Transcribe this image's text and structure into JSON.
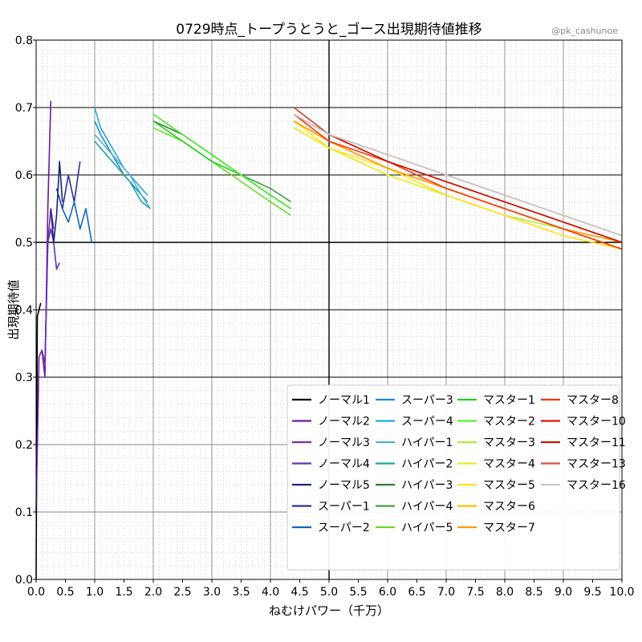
{
  "chart_data": {
    "type": "line",
    "title": "0729時点_トープうとうと_ゴース出現期待値推移",
    "watermark": "@pk_cashunoe",
    "xlabel": "ねむけパワー（千万）",
    "ylabel": "出現期待値",
    "xlim": [
      0,
      10
    ],
    "ylim": [
      0,
      0.8
    ],
    "xticks": [
      "0.0",
      "0.5",
      "1.0",
      "1.5",
      "2.0",
      "2.5",
      "3.0",
      "3.5",
      "4.0",
      "4.5",
      "5.0",
      "5.5",
      "6.0",
      "6.5",
      "7.0",
      "7.5",
      "8.0",
      "8.5",
      "9.0",
      "9.5",
      "10.0"
    ],
    "yticks": [
      "0.0",
      "0.1",
      "0.2",
      "0.3",
      "0.4",
      "0.5",
      "0.6",
      "0.7",
      "0.8"
    ],
    "grid": true,
    "legend_position": "bottom-right",
    "series": [
      {
        "name": "ノーマル1",
        "color": "#000000",
        "x": [
          0.0,
          0.02,
          0.05,
          0.08
        ],
        "y": [
          0.0,
          0.39,
          0.4,
          0.41
        ]
      },
      {
        "name": "ノーマル2",
        "color": "#6a1b9a",
        "x": [
          0.0,
          0.05,
          0.1,
          0.15,
          0.2,
          0.25
        ],
        "y": [
          0.1,
          0.33,
          0.34,
          0.3,
          0.55,
          0.71
        ]
      },
      {
        "name": "ノーマル3",
        "color": "#7b2fa8",
        "x": [
          0.05,
          0.1,
          0.15,
          0.2,
          0.25,
          0.3
        ],
        "y": [
          0.33,
          0.34,
          0.32,
          0.5,
          0.55,
          0.52
        ]
      },
      {
        "name": "ノーマル4",
        "color": "#5e35b1",
        "x": [
          0.15,
          0.2,
          0.25,
          0.3,
          0.35,
          0.4
        ],
        "y": [
          0.32,
          0.5,
          0.52,
          0.5,
          0.46,
          0.47
        ]
      },
      {
        "name": "ノーマル5",
        "color": "#1a237e",
        "x": [
          0.25,
          0.3,
          0.35,
          0.4,
          0.45
        ],
        "y": [
          0.55,
          0.5,
          0.54,
          0.62,
          0.56
        ]
      },
      {
        "name": "スーパー1",
        "color": "#283593",
        "x": [
          0.35,
          0.45,
          0.55,
          0.65,
          0.75
        ],
        "y": [
          0.58,
          0.55,
          0.6,
          0.56,
          0.62
        ]
      },
      {
        "name": "スーパー2",
        "color": "#1565c0",
        "x": [
          0.45,
          0.55,
          0.65,
          0.75,
          0.85,
          0.95
        ],
        "y": [
          0.55,
          0.53,
          0.56,
          0.52,
          0.55,
          0.5
        ]
      },
      {
        "name": "スーパー3",
        "color": "#1e88e5",
        "x": [
          1.0,
          1.1,
          1.3,
          1.5,
          1.7,
          1.9
        ],
        "y": [
          0.68,
          0.66,
          0.63,
          0.6,
          0.58,
          0.56
        ]
      },
      {
        "name": "スーパー4",
        "color": "#26a9d6",
        "x": [
          1.0,
          1.1,
          1.3,
          1.5,
          1.7,
          1.9
        ],
        "y": [
          0.7,
          0.67,
          0.64,
          0.61,
          0.59,
          0.57
        ]
      },
      {
        "name": "ハイパー1",
        "color": "#4db6c8",
        "x": [
          1.0,
          1.2,
          1.4,
          1.6,
          1.8,
          1.95
        ],
        "y": [
          0.66,
          0.64,
          0.62,
          0.6,
          0.57,
          0.55
        ]
      },
      {
        "name": "ハイパー2",
        "color": "#26a69a",
        "x": [
          1.0,
          1.2,
          1.4,
          1.6,
          1.8,
          1.95
        ],
        "y": [
          0.65,
          0.63,
          0.61,
          0.59,
          0.56,
          0.55
        ]
      },
      {
        "name": "ハイパー3",
        "color": "#2e7d32",
        "x": [
          2.0,
          2.5,
          3.0,
          3.5,
          4.0,
          4.35
        ],
        "y": [
          0.68,
          0.66,
          0.63,
          0.6,
          0.57,
          0.55
        ]
      },
      {
        "name": "ハイパー4",
        "color": "#43a047",
        "x": [
          2.0,
          2.5,
          3.0,
          3.5,
          4.0,
          4.35
        ],
        "y": [
          0.69,
          0.66,
          0.63,
          0.6,
          0.58,
          0.56
        ]
      },
      {
        "name": "ハイパー5",
        "color": "#66dd22",
        "x": [
          2.0,
          2.5,
          3.0,
          3.5,
          4.0,
          4.35
        ],
        "y": [
          0.67,
          0.65,
          0.62,
          0.59,
          0.56,
          0.54
        ]
      },
      {
        "name": "マスター1",
        "color": "#22cc22",
        "x": [
          2.0,
          2.5,
          3.0,
          3.5,
          4.0,
          4.35
        ],
        "y": [
          0.68,
          0.65,
          0.62,
          0.6,
          0.57,
          0.55
        ]
      },
      {
        "name": "マスター2",
        "color": "#55ee33",
        "x": [
          2.0,
          2.5,
          3.0,
          3.5,
          4.0,
          4.35
        ],
        "y": [
          0.69,
          0.66,
          0.63,
          0.6,
          0.57,
          0.55
        ]
      },
      {
        "name": "マスター3",
        "color": "#aaee33",
        "x": [
          4.4,
          5.0,
          6.0,
          7.0,
          8.0,
          9.0,
          10.0
        ],
        "y": [
          0.67,
          0.64,
          0.6,
          0.57,
          0.54,
          0.52,
          0.49
        ]
      },
      {
        "name": "マスター4",
        "color": "#eeee22",
        "x": [
          4.4,
          5.0,
          6.0,
          7.0,
          8.0,
          9.0,
          10.0
        ],
        "y": [
          0.67,
          0.64,
          0.6,
          0.57,
          0.54,
          0.51,
          0.49
        ]
      },
      {
        "name": "マスター5",
        "color": "#ffe022",
        "x": [
          4.4,
          5.0,
          6.0,
          7.0,
          8.0,
          9.0,
          10.0
        ],
        "y": [
          0.68,
          0.64,
          0.61,
          0.57,
          0.54,
          0.51,
          0.49
        ]
      },
      {
        "name": "マスター6",
        "color": "#ffc000",
        "x": [
          4.4,
          5.0,
          6.0,
          7.0,
          8.0,
          9.0,
          10.0
        ],
        "y": [
          0.68,
          0.65,
          0.61,
          0.58,
          0.55,
          0.52,
          0.49
        ]
      },
      {
        "name": "マスター7",
        "color": "#ff9900",
        "x": [
          4.4,
          5.0,
          6.0,
          7.0,
          8.0,
          9.0,
          10.0
        ],
        "y": [
          0.68,
          0.65,
          0.61,
          0.58,
          0.55,
          0.52,
          0.5
        ]
      },
      {
        "name": "マスター8",
        "color": "#ff3300",
        "x": [
          4.4,
          5.0,
          6.0,
          7.0,
          8.0,
          9.0,
          10.0
        ],
        "y": [
          0.69,
          0.65,
          0.62,
          0.58,
          0.55,
          0.52,
          0.49
        ]
      },
      {
        "name": "マスター10",
        "color": "#ee1100",
        "x": [
          4.4,
          5.0,
          6.0,
          7.0,
          8.0,
          9.0,
          10.0
        ],
        "y": [
          0.69,
          0.66,
          0.62,
          0.59,
          0.56,
          0.53,
          0.5
        ]
      },
      {
        "name": "マスター11",
        "color": "#cc1100",
        "x": [
          4.4,
          5.0,
          6.0,
          7.0,
          8.0,
          9.0,
          10.0
        ],
        "y": [
          0.7,
          0.66,
          0.62,
          0.59,
          0.56,
          0.53,
          0.5
        ]
      },
      {
        "name": "マスター13",
        "color": "#cc5544",
        "x": [
          4.4,
          5.0,
          6.0,
          7.0,
          8.0,
          9.0,
          10.0
        ],
        "y": [
          0.7,
          0.66,
          0.63,
          0.6,
          0.57,
          0.54,
          0.51
        ]
      },
      {
        "name": "マスター16",
        "color": "#c8c8c8",
        "x": [
          4.4,
          5.0,
          6.0,
          7.0,
          8.0,
          9.0,
          10.0
        ],
        "y": [
          0.69,
          0.66,
          0.63,
          0.6,
          0.57,
          0.54,
          0.51
        ]
      }
    ]
  }
}
